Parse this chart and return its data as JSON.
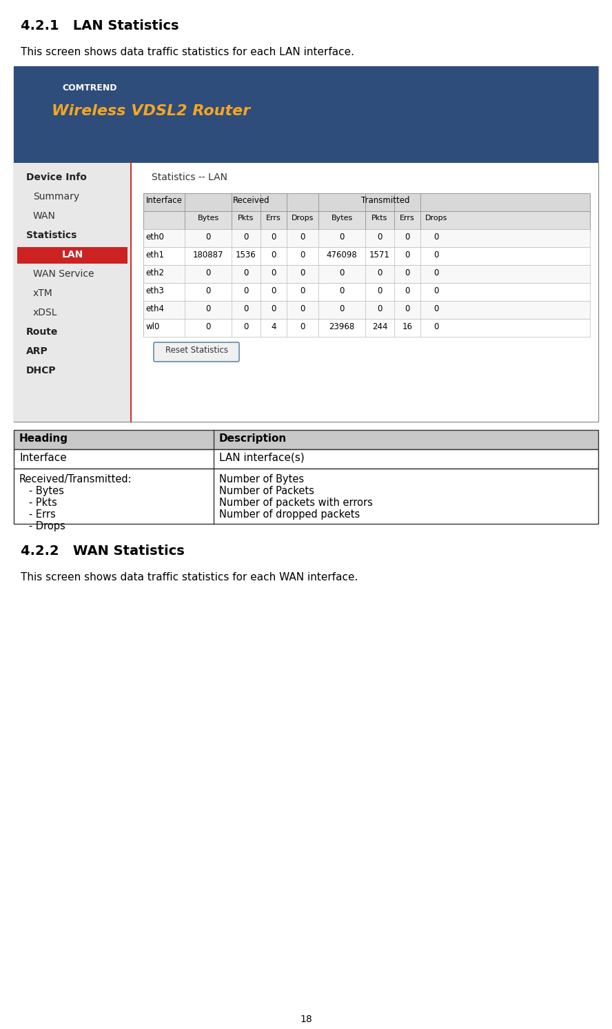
{
  "page_number": "18",
  "section_title": "4.2.1   LAN Statistics",
  "section_intro": "This screen shows data traffic statistics for each LAN interface.",
  "section2_title": "4.2.2   WAN Statistics",
  "section2_intro": "This screen shows data traffic statistics for each WAN interface.",
  "screenshot_bg_color": "#3a5a8a",
  "screenshot_sidebar_color": "#e8e8e8",
  "screenshot_main_color": "#ffffff",
  "table_header_bg": "#d0d0d0",
  "table_row_alt_bg": "#f0f0f0",
  "table_row_bg": "#ffffff",
  "table_border_color": "#999999",
  "desc_table_header_bg": "#c8c8c8",
  "desc_table_border": "#333333",
  "lan_highlight_color": "#cc2222",
  "sidebar_items": [
    "Device Info",
    "Summary",
    "WAN",
    "Statistics",
    "LAN",
    "WAN Service",
    "xTM",
    "xDSL",
    "Route",
    "ARP",
    "DHCP"
  ],
  "sidebar_bold": [
    "Device Info",
    "Statistics",
    "Route",
    "ARP",
    "DHCP"
  ],
  "sidebar_indented": [
    "Summary",
    "WAN",
    "LAN",
    "WAN Service",
    "xTM",
    "xDSL"
  ],
  "lan_item": "LAN",
  "table_headers_row1": [
    "Interface",
    "Received",
    "",
    "",
    "",
    "Transmitted",
    "",
    "",
    ""
  ],
  "table_headers_row2": [
    "",
    "Bytes",
    "Pkts",
    "Errs",
    "Drops",
    "Bytes",
    "Pkts",
    "Errs",
    "Drops"
  ],
  "table_data": [
    [
      "eth0",
      "0",
      "0",
      "0",
      "0",
      "0",
      "0",
      "0",
      "0"
    ],
    [
      "eth1",
      "180887",
      "1536",
      "0",
      "0",
      "476098",
      "1571",
      "0",
      "0"
    ],
    [
      "eth2",
      "0",
      "0",
      "0",
      "0",
      "0",
      "0",
      "0",
      "0"
    ],
    [
      "eth3",
      "0",
      "0",
      "0",
      "0",
      "0",
      "0",
      "0",
      "0"
    ],
    [
      "eth4",
      "0",
      "0",
      "0",
      "0",
      "0",
      "0",
      "0",
      "0"
    ],
    [
      "wl0",
      "0",
      "0",
      "4",
      "0",
      "23968",
      "244",
      "16",
      "0"
    ]
  ],
  "desc_table_data": [
    [
      "Heading",
      "Description"
    ],
    [
      "Interface",
      "LAN interface(s)"
    ],
    [
      "Received/Transmitted:   - Bytes\n                                    - Pkts\n                                    - Errs\n                                    - Drops",
      "Number of Bytes\nNumber of Packets\nNumber of packets with errors\nNumber of dropped packets"
    ]
  ],
  "reset_button_text": "Reset Statistics",
  "statistics_title": "Statistics -- LAN"
}
